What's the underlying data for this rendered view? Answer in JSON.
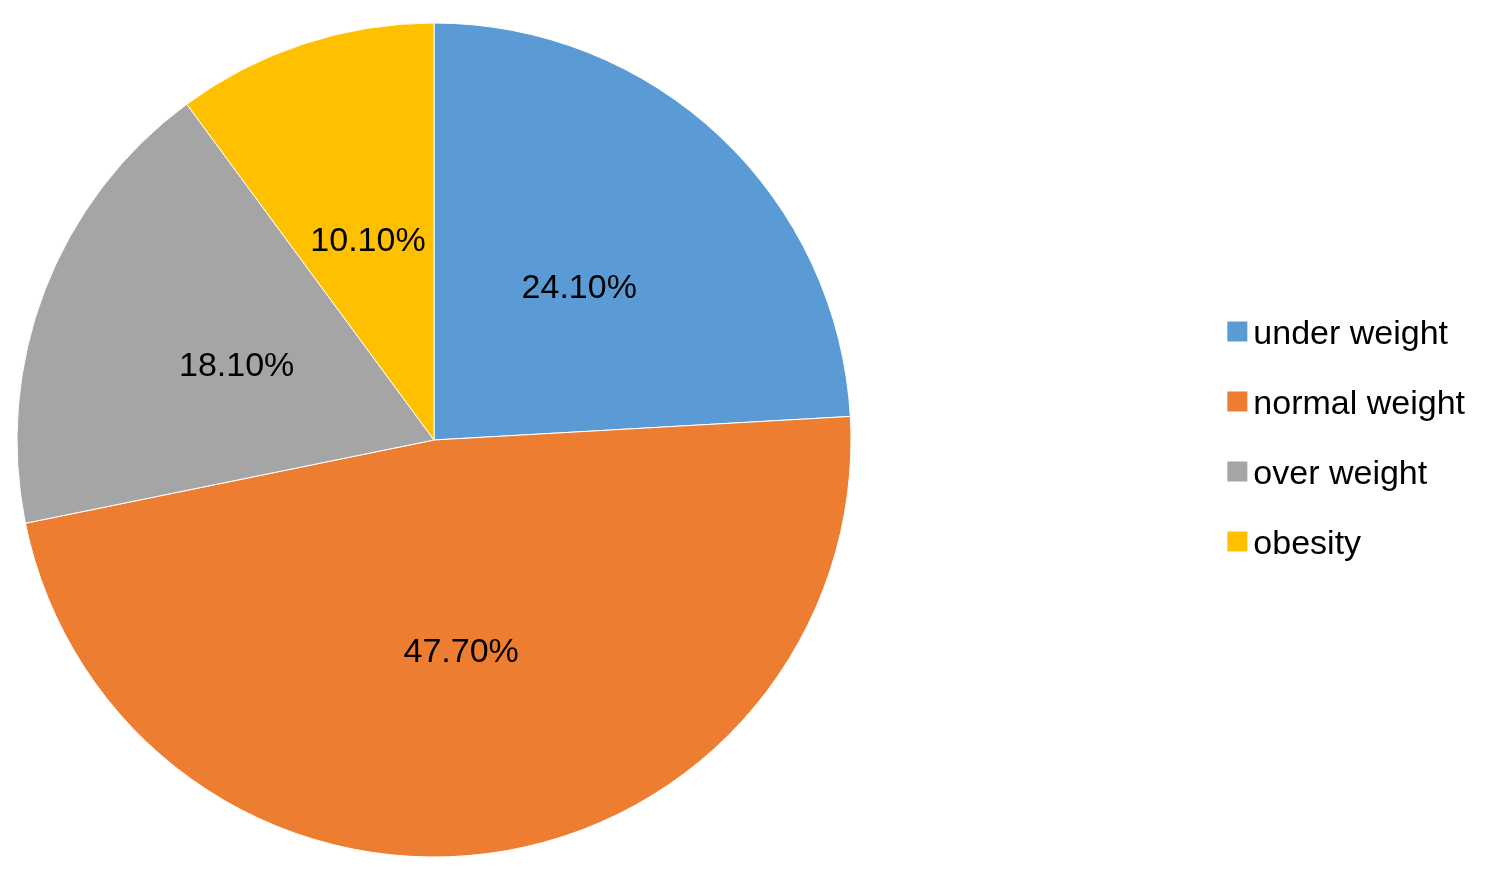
{
  "chart_data": {
    "type": "pie",
    "categories": [
      "under weight",
      "normal weight",
      "over weight",
      "obesity"
    ],
    "values": [
      24.1,
      47.7,
      18.1,
      10.1
    ],
    "colors": [
      "#5b9bd5",
      "#ed7d31",
      "#a5a5a5",
      "#ffc000"
    ],
    "value_labels": [
      "24.10%",
      "47.70%",
      "18.10%",
      "10.10%"
    ],
    "legend": "right"
  }
}
